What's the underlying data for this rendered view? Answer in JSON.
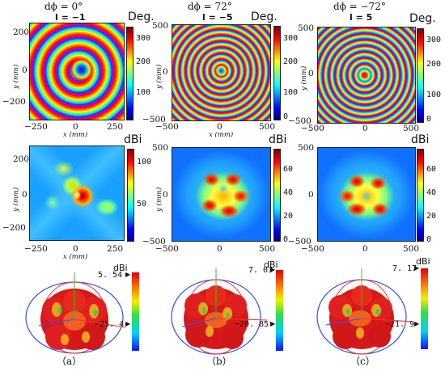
{
  "headers": [
    {
      "dphi": "dϕ = 0°",
      "l": "l = −1"
    },
    {
      "dphi": "dϕ = 72°",
      "l": "l = −5"
    },
    {
      "dphi": "dϕ = −72°",
      "l": "l = 5"
    }
  ],
  "units": {
    "phase": "Deg.",
    "gain": "dBi"
  },
  "axis_labels": {
    "x": "x (mm)",
    "y": "y (mm)"
  },
  "phase_row": [
    {
      "xticks": [
        "−250",
        "0",
        "250"
      ],
      "yticks": [
        "200",
        "0",
        "−200"
      ],
      "cbticks": [
        "300",
        "200",
        "100"
      ]
    },
    {
      "xticks": [
        "−500",
        "0",
        "500"
      ],
      "yticks": [
        "500",
        "0",
        "−500"
      ],
      "cbticks": [
        "300",
        "200",
        "100",
        "0"
      ]
    },
    {
      "xticks": [
        "−500",
        "0",
        "500"
      ],
      "yticks": [
        "500",
        "0",
        "−500"
      ],
      "cbticks": [
        "300",
        "200",
        "100",
        "0"
      ]
    }
  ],
  "gain_row": [
    {
      "xticks": [
        "−250",
        "0",
        "250"
      ],
      "yticks": [
        "200",
        "0",
        "−200"
      ],
      "cbticks": [
        "100",
        "50"
      ]
    },
    {
      "xticks": [
        "−500",
        "0",
        "500"
      ],
      "yticks": [
        "500",
        "0",
        "−500"
      ],
      "cbticks": [
        "60",
        "40",
        "20",
        "0"
      ]
    },
    {
      "xticks": [
        "−500",
        "0",
        "500"
      ],
      "yticks": [
        "500",
        "0",
        "−500"
      ],
      "cbticks": [
        "60",
        "40",
        "20",
        "0"
      ]
    }
  ],
  "pattern_row": [
    {
      "max": "5. 54",
      "min": "−25. 4",
      "unit": "dBi",
      "caption": "（a）"
    },
    {
      "max": "7. 03",
      "min": "−20. 85",
      "unit": "dBi",
      "caption": "（b）"
    },
    {
      "max": "7. 17",
      "min": "−21. 9",
      "unit": "dBi",
      "caption": "（c）"
    }
  ],
  "colors": {
    "high": "#d00000",
    "mid": "#30e040",
    "low": "#0000ff"
  }
}
